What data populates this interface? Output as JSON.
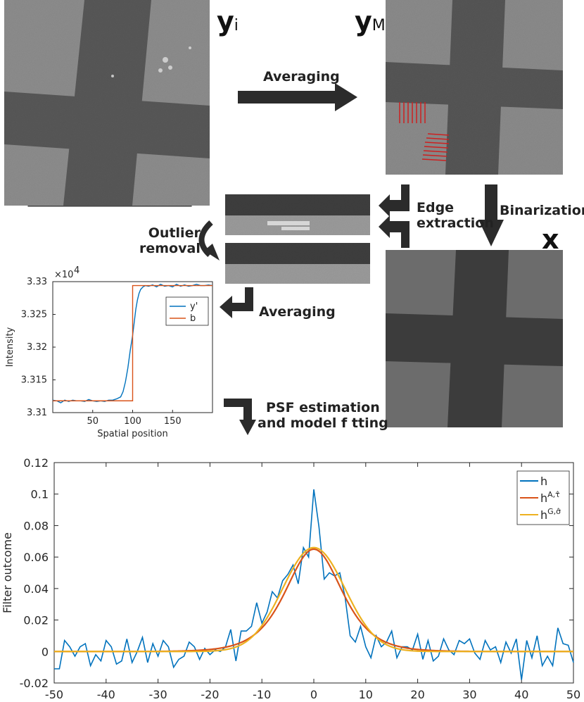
{
  "symbols": {
    "y_i": {
      "main": "y",
      "sub": "i"
    },
    "y_M": {
      "main": "y",
      "sub": "M"
    },
    "x": {
      "main": "x"
    }
  },
  "steps": {
    "averaging_top": "Averaging",
    "binarization": "Binarization",
    "edge_extraction": [
      "Edge",
      "extraction"
    ],
    "outlier_removal": [
      "Outlier",
      "removal"
    ],
    "averaging_mid": "Averaging",
    "psf_estimation": [
      "PSF estimation",
      "and model f tting"
    ]
  },
  "colors": {
    "arrow": "#2b2b2b",
    "blue": "#0072BD",
    "orange": "#D95319",
    "yellow": "#EDB120",
    "red_lines": "#cc2020"
  },
  "chart_data": [
    {
      "type": "line",
      "id": "edge-profile",
      "xlabel": "Spatial position",
      "ylabel": "Intensity",
      "exponent_label": "×10",
      "exponent_power": "4",
      "xlim": [
        0,
        200
      ],
      "ylim": [
        3.31,
        3.33
      ],
      "xticks": [
        50,
        100,
        150
      ],
      "yticks": [
        3.31,
        3.315,
        3.32,
        3.325,
        3.33
      ],
      "ytick_labels": [
        "3.31",
        "3.315",
        "3.32",
        "3.325",
        "3.33"
      ],
      "legend": [
        "y'",
        "b"
      ],
      "legend_position": "top-right",
      "series": [
        {
          "name": "y'",
          "color": "#0072BD",
          "x": [
            0,
            5,
            10,
            15,
            20,
            25,
            30,
            35,
            40,
            45,
            50,
            55,
            60,
            65,
            70,
            75,
            80,
            85,
            88,
            91,
            94,
            97,
            100,
            102,
            104,
            106,
            108,
            110,
            113,
            116,
            120,
            125,
            130,
            135,
            140,
            145,
            150,
            155,
            160,
            165,
            170,
            175,
            180,
            185,
            190,
            195,
            200
          ],
          "y": [
            3.3119,
            3.3118,
            3.3115,
            3.3119,
            3.3117,
            3.3119,
            3.3118,
            3.3118,
            3.3117,
            3.312,
            3.3118,
            3.3117,
            3.3118,
            3.3117,
            3.3119,
            3.3119,
            3.3121,
            3.3124,
            3.3132,
            3.3147,
            3.3168,
            3.3195,
            3.3218,
            3.3238,
            3.3258,
            3.3272,
            3.3282,
            3.3288,
            3.3292,
            3.3294,
            3.3293,
            3.3295,
            3.3292,
            3.3296,
            3.3293,
            3.3294,
            3.3292,
            3.3296,
            3.3293,
            3.3295,
            3.3293,
            3.3294,
            3.3296,
            3.3294,
            3.3294,
            3.3295,
            3.3294
          ]
        },
        {
          "name": "b",
          "color": "#D95319",
          "x": [
            0,
            100,
            100,
            200
          ],
          "y": [
            3.3118,
            3.3118,
            3.3294,
            3.3294
          ]
        }
      ]
    },
    {
      "type": "line",
      "id": "psf-fit",
      "xlabel": "",
      "ylabel": "Filter outcome",
      "xlim": [
        -50,
        50
      ],
      "ylim": [
        -0.02,
        0.12
      ],
      "xticks": [
        -50,
        -40,
        -30,
        -20,
        -10,
        0,
        10,
        20,
        30,
        40,
        50
      ],
      "yticks": [
        -0.02,
        0,
        0.02,
        0.04,
        0.06,
        0.08,
        0.1,
        0.12
      ],
      "ytick_labels": [
        "-0.02",
        "0",
        "0.02",
        "0.04",
        "0.06",
        "0.08",
        "0.1",
        "0.12"
      ],
      "legend": [
        "h",
        "hA,τ̂",
        "hG,σ̂"
      ],
      "legend_position": "top-right",
      "series": [
        {
          "name": "h",
          "color": "#0072BD",
          "x": [
            -50,
            -49,
            -48,
            -47,
            -46,
            -45,
            -44,
            -43,
            -42,
            -41,
            -40,
            -39,
            -38,
            -37,
            -36,
            -35,
            -34,
            -33,
            -32,
            -31,
            -30,
            -29,
            -28,
            -27,
            -26,
            -25,
            -24,
            -23,
            -22,
            -21,
            -20,
            -19,
            -18,
            -17,
            -16,
            -15,
            -14,
            -13,
            -12,
            -11,
            -10,
            -9,
            -8,
            -7,
            -6,
            -5,
            -4,
            -3,
            -2,
            -1,
            0,
            1,
            2,
            3,
            4,
            5,
            6,
            7,
            8,
            9,
            10,
            11,
            12,
            13,
            14,
            15,
            16,
            17,
            18,
            19,
            20,
            21,
            22,
            23,
            24,
            25,
            26,
            27,
            28,
            29,
            30,
            31,
            32,
            33,
            34,
            35,
            36,
            37,
            38,
            39,
            40,
            41,
            42,
            43,
            44,
            45,
            46,
            47,
            48,
            49,
            50
          ],
          "y": [
            -0.011,
            -0.011,
            0.007,
            0.003,
            -0.003,
            0.003,
            0.005,
            -0.009,
            -0.002,
            -0.006,
            0.007,
            0.003,
            -0.008,
            -0.006,
            0.008,
            -0.007,
            0.0,
            0.009,
            -0.007,
            0.005,
            -0.003,
            0.007,
            0.003,
            -0.01,
            -0.005,
            -0.003,
            0.006,
            0.003,
            -0.005,
            0.002,
            -0.002,
            0.001,
            0.0,
            0.003,
            0.014,
            -0.006,
            0.013,
            0.013,
            0.016,
            0.031,
            0.018,
            0.025,
            0.038,
            0.034,
            0.045,
            0.049,
            0.055,
            0.043,
            0.066,
            0.06,
            0.103,
            0.079,
            0.046,
            0.05,
            0.048,
            0.05,
            0.035,
            0.01,
            0.006,
            0.016,
            0.003,
            -0.004,
            0.01,
            0.003,
            0.006,
            0.013,
            -0.004,
            0.003,
            0.003,
            0.001,
            0.011,
            -0.005,
            0.007,
            -0.006,
            -0.003,
            0.008,
            0.001,
            -0.002,
            0.007,
            0.005,
            0.008,
            -0.001,
            -0.005,
            0.007,
            0.001,
            0.003,
            -0.007,
            0.006,
            -0.001,
            0.008,
            -0.018,
            0.007,
            -0.004,
            0.01,
            -0.009,
            -0.003,
            -0.009,
            0.015,
            0.005,
            0.004,
            -0.007
          ]
        },
        {
          "name": "hA,τ̂",
          "color": "#D95319",
          "model": "hyperbolic-secant",
          "amplitude": 0.065,
          "width": 5.8
        },
        {
          "name": "hG,σ̂",
          "color": "#EDB120",
          "model": "gaussian",
          "amplitude": 0.066,
          "width": 6.0
        }
      ]
    }
  ]
}
